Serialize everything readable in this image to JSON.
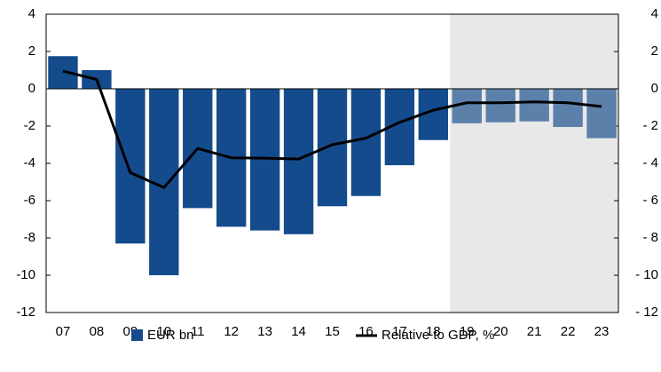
{
  "chart_data": {
    "type": "bar",
    "categories": [
      "07",
      "08",
      "09",
      "10",
      "11",
      "12",
      "13",
      "14",
      "15",
      "16",
      "17",
      "18",
      "19",
      "20",
      "21",
      "22",
      "23"
    ],
    "series": [
      {
        "name": "EUR bn",
        "type": "bar",
        "color": "#144b8c",
        "forecast_color": "#5b80aa",
        "values": [
          1.75,
          1.0,
          -8.3,
          -10.0,
          -6.4,
          -7.4,
          -7.6,
          -7.8,
          -6.3,
          -5.75,
          -4.1,
          -2.75,
          -1.85,
          -1.8,
          -1.75,
          -2.05,
          -2.65
        ]
      },
      {
        "name": "Relative to GDP, %",
        "type": "line",
        "color": "#000000",
        "axis": "y2",
        "values": [
          0.95,
          0.5,
          -4.5,
          -5.3,
          -3.2,
          -3.7,
          -3.72,
          -3.77,
          -3.0,
          -2.65,
          -1.8,
          -1.15,
          -0.75,
          -0.75,
          -0.7,
          -0.75,
          -0.95
        ]
      }
    ],
    "shade_from": "19",
    "shade_color": "#e8e8e8",
    "ylim": [
      -12,
      4
    ],
    "yticks": [
      -12,
      -10,
      -8,
      -6,
      -4,
      -2,
      0,
      2,
      4
    ],
    "y2lim": [
      -12,
      4
    ],
    "y2ticks": [
      {
        "value": -12,
        "label": "- 12"
      },
      {
        "value": -10,
        "label": "- 10"
      },
      {
        "value": -8,
        "label": "- 8"
      },
      {
        "value": -6,
        "label": "- 6"
      },
      {
        "value": -4,
        "label": "- 4"
      },
      {
        "value": -2,
        "label": "- 2"
      },
      0,
      2,
      4
    ],
    "legend": "bottom"
  }
}
